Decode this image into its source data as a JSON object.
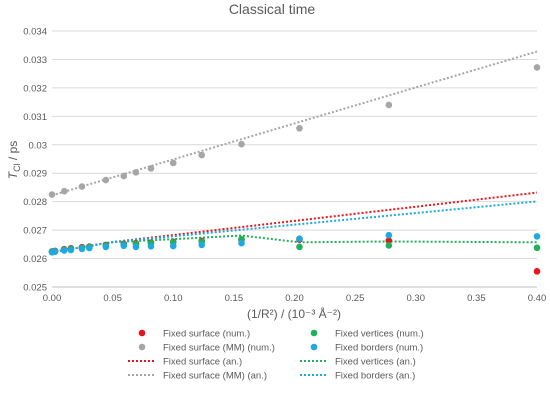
{
  "chart_data": {
    "type": "scatter",
    "title": "Classical time",
    "xlabel": "(1/R²) / (10⁻³ Å⁻²)",
    "ylabel": {
      "symbol": "T",
      "subscript": "Cl",
      "unit": " / ps"
    },
    "xlim": [
      0,
      0.4
    ],
    "ylim": [
      0.025,
      0.034
    ],
    "x_ticks": [
      0,
      0.05,
      0.1,
      0.15,
      0.2,
      0.25,
      0.3,
      0.35,
      0.4
    ],
    "x_tick_labels": [
      "0.00",
      "0.05",
      "0.10",
      "0.15",
      "0.20",
      "0.25",
      "0.30",
      "0.35",
      "0.40"
    ],
    "y_ticks": [
      0.025,
      0.026,
      0.027,
      0.028,
      0.029,
      0.03,
      0.031,
      0.032,
      0.033,
      0.034
    ],
    "y_tick_labels": [
      "0.025",
      "0.026",
      "0.027",
      "0.028",
      "0.029",
      "0.03",
      "0.031",
      "0.032",
      "0.033",
      "0.034"
    ],
    "grid": "horizontal",
    "legend_position": "bottom",
    "series": [
      {
        "name": "Fixed surface (num.)",
        "kind": "points",
        "color": "#e8141c",
        "x": [
          0,
          0.0025,
          0.01,
          0.0156,
          0.0247,
          0.0308,
          0.0444,
          0.0592,
          0.0692,
          0.0816,
          0.1,
          0.1235,
          0.1563,
          0.2041,
          0.2778,
          0.4
        ],
        "y": [
          0.02625,
          0.02627,
          0.02633,
          0.02636,
          0.0264,
          0.02642,
          0.02648,
          0.02652,
          0.02654,
          0.02656,
          0.02659,
          0.02662,
          0.02666,
          0.02667,
          0.02663,
          0.02555
        ]
      },
      {
        "name": "Fixed surface (MM) (num.)",
        "kind": "points",
        "color": "#a6a6a6",
        "x": [
          0,
          0.0102,
          0.0247,
          0.0444,
          0.0592,
          0.0692,
          0.0816,
          0.1,
          0.1235,
          0.1563,
          0.2041,
          0.2778,
          0.4
        ],
        "y": [
          0.02825,
          0.02837,
          0.02853,
          0.02876,
          0.0289,
          0.02903,
          0.02917,
          0.02936,
          0.02964,
          0.03002,
          0.03058,
          0.0314,
          0.03272
        ]
      },
      {
        "name": "Fixed vertices (num.)",
        "kind": "points",
        "color": "#1eb15a",
        "x": [
          0,
          0.0025,
          0.01,
          0.0156,
          0.0247,
          0.0308,
          0.0444,
          0.0592,
          0.0692,
          0.0816,
          0.1,
          0.1235,
          0.1563,
          0.2041,
          0.2778,
          0.4
        ],
        "y": [
          0.02624,
          0.02626,
          0.02631,
          0.02634,
          0.02638,
          0.02641,
          0.02646,
          0.0265,
          0.02652,
          0.02654,
          0.02657,
          0.0266,
          0.02668,
          0.02641,
          0.02646,
          0.02638
        ]
      },
      {
        "name": "Fixed borders (num.)",
        "kind": "points",
        "color": "#1fa9e1",
        "x": [
          0,
          0.0025,
          0.01,
          0.0156,
          0.0247,
          0.0308,
          0.0444,
          0.0592,
          0.0692,
          0.0816,
          0.1,
          0.1235,
          0.1563,
          0.2041,
          0.2778,
          0.4
        ],
        "y": [
          0.02622,
          0.02624,
          0.02628,
          0.0263,
          0.02634,
          0.02637,
          0.02641,
          0.02645,
          0.02641,
          0.02643,
          0.02644,
          0.02648,
          0.02654,
          0.0267,
          0.02682,
          0.02678
        ]
      },
      {
        "name": "Fixed surface (an.)",
        "kind": "dotted-line",
        "color": "#e8141c",
        "x": [
          0,
          0.05,
          0.4
        ],
        "y": [
          0.02623,
          0.02658,
          0.02832
        ]
      },
      {
        "name": "Fixed surface (MM) (an.)",
        "kind": "dotted-line",
        "color": "#a6a6a6",
        "x": [
          0,
          0.4
        ],
        "y": [
          0.02822,
          0.03328
        ]
      },
      {
        "name": "Fixed vertices (an.)",
        "kind": "dotted-line",
        "color": "#1eb15a",
        "x": [
          0,
          0.05,
          0.1,
          0.1563,
          0.2041,
          0.2778,
          0.4
        ],
        "y": [
          0.02623,
          0.02658,
          0.02668,
          0.02681,
          0.02657,
          0.0266,
          0.02657
        ]
      },
      {
        "name": "Fixed borders (an.)",
        "kind": "dotted-line",
        "color": "#1fa9e1",
        "x": [
          0,
          0.05,
          0.4
        ],
        "y": [
          0.02623,
          0.02658,
          0.02801
        ]
      }
    ],
    "legend_order": [
      0,
      2,
      1,
      3,
      4,
      6,
      5,
      7
    ]
  }
}
